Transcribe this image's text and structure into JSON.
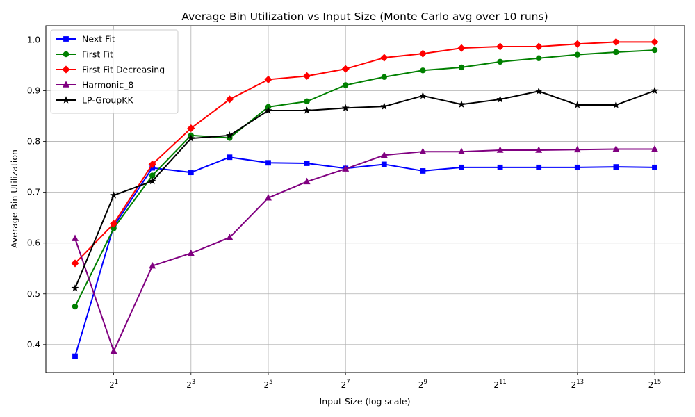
{
  "chart_data": {
    "type": "line",
    "title": "Average Bin Utilization vs Input Size (Monte Carlo avg over 10 runs)",
    "xlabel": "Input Size (log scale)",
    "ylabel": "Average Bin Utilization",
    "x_scale": "log2",
    "x": [
      1,
      2,
      4,
      8,
      16,
      32,
      64,
      128,
      256,
      512,
      1024,
      2048,
      4096,
      8192,
      16384,
      32768
    ],
    "x_ticks": [
      {
        "value": 2,
        "base": "2",
        "exp": "1"
      },
      {
        "value": 8,
        "base": "2",
        "exp": "3"
      },
      {
        "value": 32,
        "base": "2",
        "exp": "5"
      },
      {
        "value": 128,
        "base": "2",
        "exp": "7"
      },
      {
        "value": 512,
        "base": "2",
        "exp": "9"
      },
      {
        "value": 2048,
        "base": "2",
        "exp": "11"
      },
      {
        "value": 8192,
        "base": "2",
        "exp": "13"
      },
      {
        "value": 32768,
        "base": "2",
        "exp": "15"
      }
    ],
    "ylim": [
      0.345,
      1.028
    ],
    "y_ticks": [
      "0.4",
      "0.5",
      "0.6",
      "0.7",
      "0.8",
      "0.9",
      "1.0"
    ],
    "grid": true,
    "legend_position": "top-left",
    "series": [
      {
        "name": "Next Fit",
        "color": "#0000ff",
        "marker": "square",
        "values": [
          0.377,
          0.633,
          0.748,
          0.739,
          0.769,
          0.758,
          0.757,
          0.747,
          0.755,
          0.742,
          0.749,
          0.749,
          0.749,
          0.749,
          0.75,
          0.749
        ]
      },
      {
        "name": "First Fit",
        "color": "#008000",
        "marker": "circle",
        "values": [
          0.475,
          0.629,
          0.733,
          0.812,
          0.807,
          0.868,
          0.879,
          0.911,
          0.927,
          0.94,
          0.946,
          0.957,
          0.964,
          0.971,
          0.976,
          0.98
        ]
      },
      {
        "name": "First Fit Decreasing",
        "color": "#ff0000",
        "marker": "diamond",
        "values": [
          0.56,
          0.638,
          0.755,
          0.826,
          0.883,
          0.922,
          0.929,
          0.943,
          0.965,
          0.973,
          0.984,
          0.987,
          0.987,
          0.992,
          0.996,
          0.996
        ]
      },
      {
        "name": "Harmonic_8",
        "color": "#800080",
        "marker": "triangle",
        "values": [
          0.609,
          0.387,
          0.555,
          0.58,
          0.611,
          0.689,
          0.721,
          0.746,
          0.773,
          0.78,
          0.78,
          0.783,
          0.783,
          0.784,
          0.785,
          0.785
        ]
      },
      {
        "name": "LP-GroupKK",
        "color": "#000000",
        "marker": "star",
        "values": [
          0.511,
          0.694,
          0.722,
          0.806,
          0.812,
          0.861,
          0.861,
          0.866,
          0.869,
          0.89,
          0.873,
          0.883,
          0.899,
          0.872,
          0.872,
          0.9
        ]
      }
    ]
  }
}
